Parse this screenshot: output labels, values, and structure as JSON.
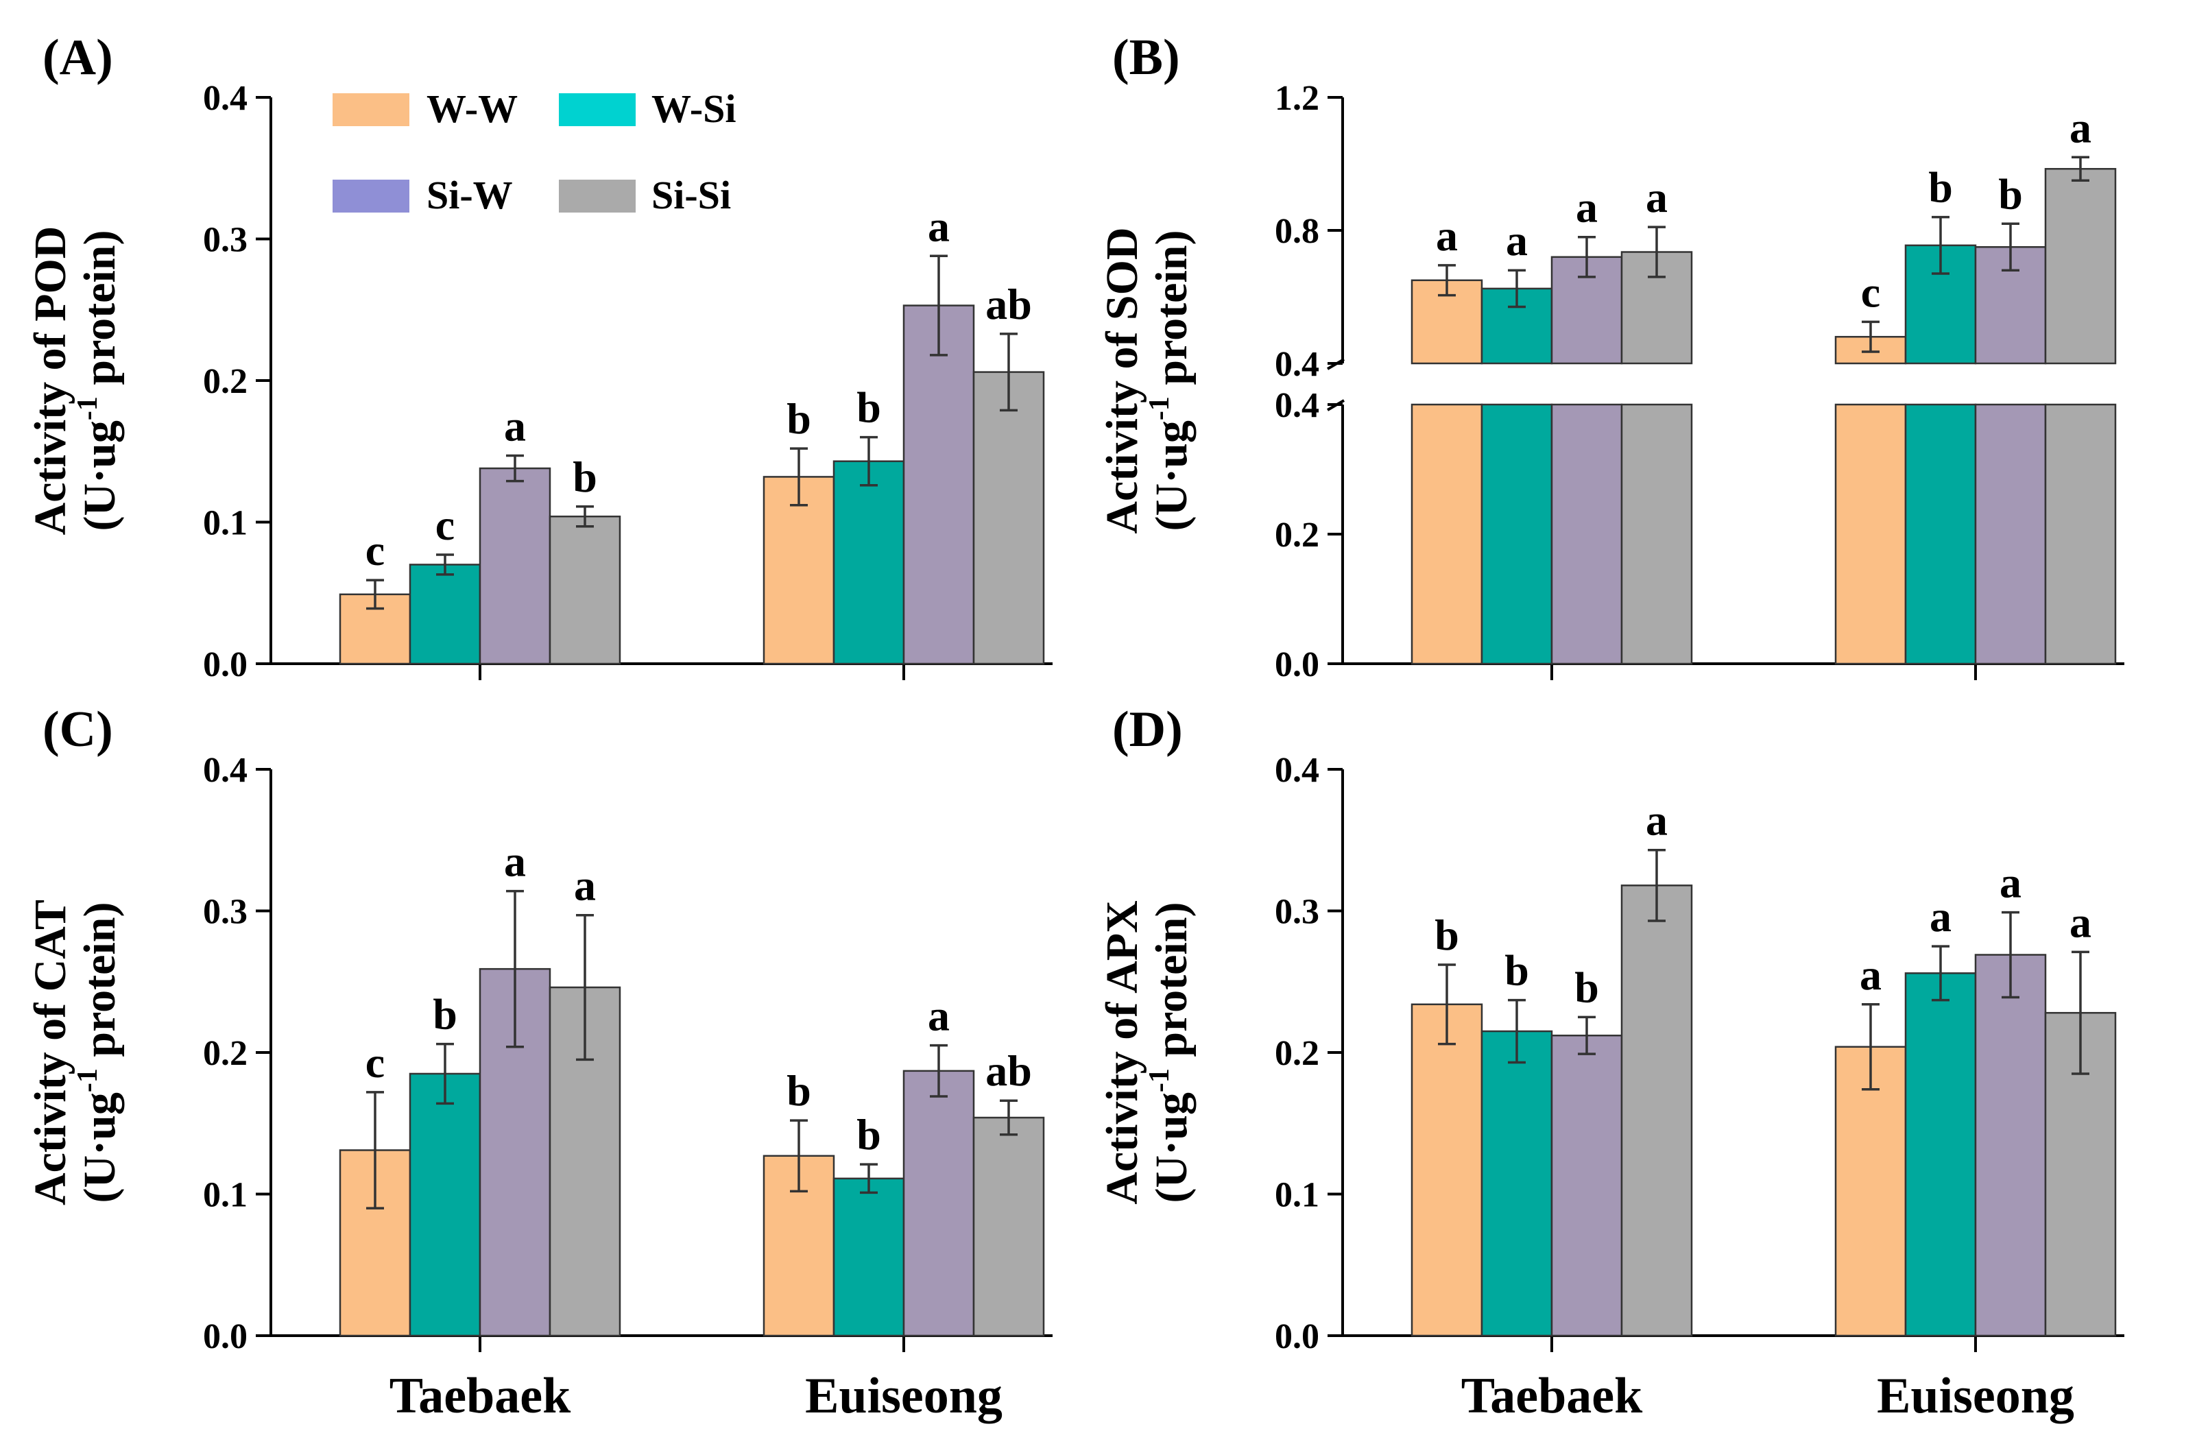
{
  "series_names": [
    "W-W",
    "W-Si",
    "Si-W",
    "Si-Si"
  ],
  "colors": {
    "W-W": "#fbbf86",
    "W-Si": "#00a99d",
    "Si-W": "#a498b5",
    "Si-Si": "#aaaaaa"
  },
  "legend": {
    "entries": [
      {
        "label": "W-W",
        "swatch": "#fbbf86"
      },
      {
        "label": "W-Si",
        "swatch": "#00d2d0"
      },
      {
        "label": "Si-W",
        "swatch": "#8f8fd6"
      },
      {
        "label": "Si-Si",
        "swatch": "#aaaaaa"
      }
    ]
  },
  "chart_data": [
    {
      "panel": "(A)",
      "type": "bar",
      "categories": [
        "Taebaek",
        "Euiseong"
      ],
      "ylabel": "Activity of POD",
      "ylabel_unit": {
        "pre": "(U·ug",
        "sup": "-1",
        "post": " protein)"
      },
      "ylim": [
        0,
        0.4
      ],
      "yticks": [
        "0.0",
        "0.1",
        "0.2",
        "0.3",
        "0.4"
      ],
      "series": [
        {
          "name": "W-W",
          "values": [
            0.049,
            0.132
          ],
          "errors": [
            0.01,
            0.02
          ],
          "letters": [
            "c",
            "b"
          ]
        },
        {
          "name": "W-Si",
          "values": [
            0.07,
            0.143
          ],
          "errors": [
            0.007,
            0.017
          ],
          "letters": [
            "c",
            "b"
          ]
        },
        {
          "name": "Si-W",
          "values": [
            0.138,
            0.253
          ],
          "errors": [
            0.009,
            0.035
          ],
          "letters": [
            "a",
            "a"
          ]
        },
        {
          "name": "Si-Si",
          "values": [
            0.104,
            0.206
          ],
          "errors": [
            0.007,
            0.027
          ],
          "letters": [
            "b",
            "ab"
          ]
        }
      ]
    },
    {
      "panel": "(B)",
      "type": "bar",
      "categories": [
        "Taebaek",
        "Euiseong"
      ],
      "ylabel": "Activity of SOD",
      "ylabel_unit": {
        "pre": "(U·ug",
        "sup": "-1",
        "post": " protein)"
      },
      "ylim": [
        0,
        1.2
      ],
      "axis_break": [
        0.4,
        0.4
      ],
      "yticks_lower": [
        "0.0",
        "0.2",
        "0.4"
      ],
      "yticks_upper": [
        "0.4",
        "0.8",
        "1.2"
      ],
      "series": [
        {
          "name": "W-W",
          "values": [
            0.65,
            0.48
          ],
          "errors": [
            0.045,
            0.045
          ],
          "letters": [
            "a",
            "c"
          ]
        },
        {
          "name": "W-Si",
          "values": [
            0.625,
            0.755
          ],
          "errors": [
            0.055,
            0.085
          ],
          "letters": [
            "a",
            "b"
          ]
        },
        {
          "name": "Si-W",
          "values": [
            0.72,
            0.75
          ],
          "errors": [
            0.06,
            0.07
          ],
          "letters": [
            "a",
            "b"
          ]
        },
        {
          "name": "Si-Si",
          "values": [
            0.735,
            0.985
          ],
          "errors": [
            0.075,
            0.035
          ],
          "letters": [
            "a",
            "a"
          ]
        }
      ]
    },
    {
      "panel": "(C)",
      "type": "bar",
      "categories": [
        "Taebaek",
        "Euiseong"
      ],
      "ylabel": "Activity of CAT",
      "ylabel_unit": {
        "pre": "(U·ug",
        "sup": "-1",
        "post": " protein)"
      },
      "ylim": [
        0,
        0.4
      ],
      "yticks": [
        "0.0",
        "0.1",
        "0.2",
        "0.3",
        "0.4"
      ],
      "series": [
        {
          "name": "W-W",
          "values": [
            0.131,
            0.127
          ],
          "errors": [
            0.041,
            0.025
          ],
          "letters": [
            "c",
            "b"
          ]
        },
        {
          "name": "W-Si",
          "values": [
            0.185,
            0.111
          ],
          "errors": [
            0.021,
            0.01
          ],
          "letters": [
            "b",
            "b"
          ]
        },
        {
          "name": "Si-W",
          "values": [
            0.259,
            0.187
          ],
          "errors": [
            0.055,
            0.018
          ],
          "letters": [
            "a",
            "a"
          ]
        },
        {
          "name": "Si-Si",
          "values": [
            0.246,
            0.154
          ],
          "errors": [
            0.051,
            0.012
          ],
          "letters": [
            "a",
            "ab"
          ]
        }
      ]
    },
    {
      "panel": "(D)",
      "type": "bar",
      "categories": [
        "Taebaek",
        "Euiseong"
      ],
      "ylabel": "Activity of APX",
      "ylabel_unit": {
        "pre": "(U·ug",
        "sup": "-1",
        "post": " protein)"
      },
      "ylim": [
        0,
        0.4
      ],
      "yticks": [
        "0.0",
        "0.1",
        "0.2",
        "0.3",
        "0.4"
      ],
      "series": [
        {
          "name": "W-W",
          "values": [
            0.234,
            0.204
          ],
          "errors": [
            0.028,
            0.03
          ],
          "letters": [
            "b",
            "a"
          ]
        },
        {
          "name": "W-Si",
          "values": [
            0.215,
            0.256
          ],
          "errors": [
            0.022,
            0.019
          ],
          "letters": [
            "b",
            "a"
          ]
        },
        {
          "name": "Si-W",
          "values": [
            0.212,
            0.269
          ],
          "errors": [
            0.013,
            0.03
          ],
          "letters": [
            "b",
            "a"
          ]
        },
        {
          "name": "Si-Si",
          "values": [
            0.318,
            0.228
          ],
          "errors": [
            0.025,
            0.043
          ],
          "letters": [
            "a",
            "a"
          ]
        }
      ]
    }
  ]
}
